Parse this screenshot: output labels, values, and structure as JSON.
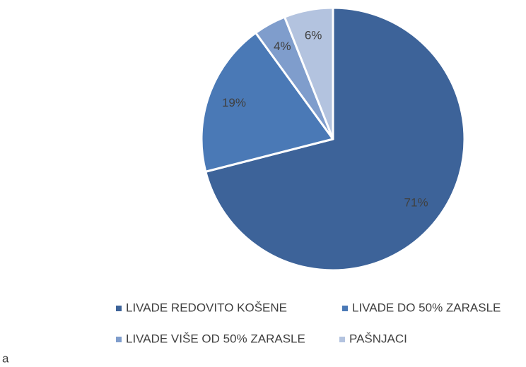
{
  "chart_data": {
    "type": "pie",
    "categories": [
      "LIVADE REDOVITO KOŠENE",
      "LIVADE DO 50% ZARASLE",
      "LIVADE VIŠE OD 50% ZARASLE",
      "PAŠNJACI"
    ],
    "values": [
      71,
      19,
      4,
      6
    ],
    "value_labels": [
      "71%",
      "19%",
      "4%",
      "6%"
    ],
    "colors": [
      "#3d6399",
      "#4a79b6",
      "#7f9dcc",
      "#b3c3df"
    ],
    "legend": "bottom"
  },
  "caption": "a"
}
